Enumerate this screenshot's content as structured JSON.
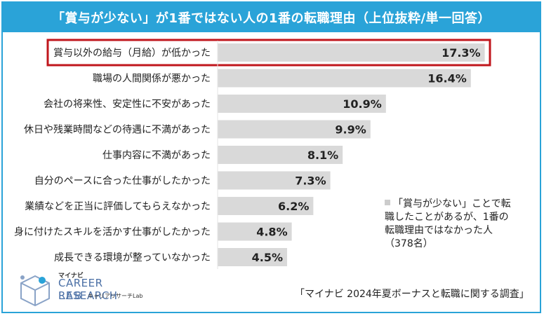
{
  "title": "「賞与が少ない」が1番ではない人の1番の転職理由（上位抜粋/単一回答）",
  "legend": {
    "text": "「賞与が少ない」ことで転職したことがあるが、1番の転職理由ではなかった人（378名）"
  },
  "source": "「マイナビ 2024年夏ボーナスと転職に関する調査」",
  "logo": {
    "mynavi": "マイナビ",
    "career": "CAREER RESEARCH",
    "lab": "LAB",
    "kana": "キャリアリサーチLab",
    "icon": "cube-logo-icon"
  },
  "colors": {
    "accent": "#2aa3d8",
    "bar": "#d9d9d9",
    "highlight": "#c0161c"
  },
  "chart_data": {
    "type": "bar",
    "orientation": "horizontal",
    "title": "「賞与が少ない」が1番ではない人の1番の転職理由（上位抜粋/単一回答）",
    "categories": [
      "賞与以外の給与（月給）が低かった",
      "職場の人間関係が悪かった",
      "会社の将来性、安定性に不安があった",
      "休日や残業時間などの待遇に不満があった",
      "仕事内容に不満があった",
      "自分のペースに合った仕事がしたかった",
      "業績などを正当に評価してもらえなかった",
      "身に付けたスキルを活かす仕事がしたかった",
      "成長できる環境が整っていなかった"
    ],
    "values": [
      17.3,
      16.4,
      10.9,
      9.9,
      8.1,
      7.3,
      6.2,
      4.8,
      4.5
    ],
    "labels": [
      "17.3%",
      "16.4%",
      "10.9%",
      "9.9%",
      "8.1%",
      "7.3%",
      "6.2%",
      "4.8%",
      "4.5%"
    ],
    "highlighted_index": 0,
    "xlim": [
      0,
      18
    ],
    "grid": false
  }
}
